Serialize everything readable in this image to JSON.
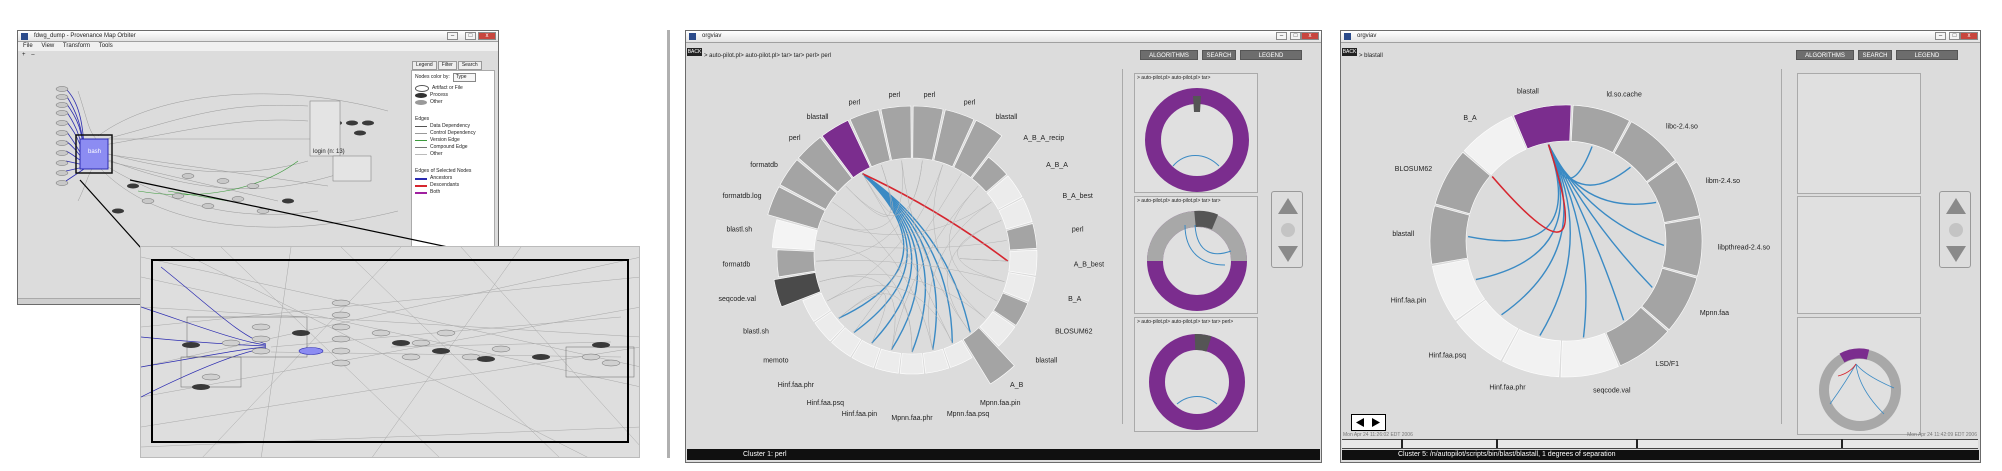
{
  "window1": {
    "title": "fdwg_dump - Provenance Map Orbiter",
    "menu": [
      "File",
      "View",
      "Transform",
      "Tools"
    ],
    "tabs": [
      "Legend",
      "Filter",
      "Search"
    ],
    "legend": {
      "nodes_color_by_label": "Nodes color by:",
      "nodes_color_by_value": "Type",
      "node_types": [
        "Artifact or File",
        "Process",
        "Other"
      ],
      "edges_title": "Edges",
      "edge_types": [
        "Data Dependency",
        "Control Dependency",
        "Version Edge",
        "Compound Edge",
        "Other"
      ],
      "selected_title": "Edges of Selected Nodes",
      "selected_types": [
        "Ancestors",
        "Descendants",
        "Both"
      ]
    },
    "center_node_label": "bash",
    "group_node_label": "login (n: 13)"
  },
  "window2": {
    "title": "orgviav",
    "back_label": "BACK",
    "breadcrumb": "> auto-pilot.pl> auto-pilot.pl> tar> tar> perl> perl",
    "buttons": [
      "ALGORITHMS",
      "SEARCH",
      "LEGEND"
    ],
    "ring_labels": [
      "formatdb.log",
      "formatdb",
      "perl",
      "blastall",
      "perl",
      "perl",
      "perl",
      "perl",
      "blastall",
      "A_B_A_recip",
      "A_B_A",
      "B_A_best",
      "perl",
      "A_B_best",
      "B_A",
      "BLOSUM62",
      "blastall",
      "A_B",
      "Mpnn.faa.pin",
      "Mpnn.faa.psq",
      "Mpnn.faa.phr",
      "Hinf.faa.pin",
      "Hinf.faa.psq",
      "Hinf.faa.phr",
      "memoto",
      "blastl.sh",
      "seqcode.val",
      "formatdb",
      "blastl.sh"
    ],
    "thumbs": [
      {
        "caption": "> auto-pilot.pl> auto-pilot.pl> tar>"
      },
      {
        "caption": "> auto-pilot.pl> auto-pilot.pl> tar> tar>"
      },
      {
        "caption": "> auto-pilot.pl> auto-pilot.pl> tar> tar> perl>"
      }
    ],
    "status": "Cluster 1: perl"
  },
  "window3": {
    "title": "orgviav",
    "back_label": "BACK",
    "breadcrumb": "> blastall",
    "buttons": [
      "ALGORITHMS",
      "SEARCH",
      "LEGEND"
    ],
    "ring_labels": [
      "blastall",
      "ld.so.cache",
      "libc-2.4.so",
      "libm-2.4.so",
      "libpthread-2.4.so",
      "Mpnn.faa",
      "LSD/F1",
      "seqcode.val",
      "Hinf.faa.phr",
      "Hinf.faa.psq",
      "Hinf.faa.pin",
      "blastall",
      "BLOSUM62",
      "B_A"
    ],
    "timeline_start": "Mon Apr 24 11:26:02 EDT 2006",
    "timeline_end": "Mon Apr 24 11:42:09 EDT 2006",
    "status": "Cluster 5: /n/autopilot/scripts/bin/blast/blastall, 1 degrees of separation"
  },
  "colors": {
    "purple": "#7b2d8e",
    "blue_edge": "#3a8ac4",
    "red_edge": "#d6262f",
    "ring_gray": "#a0a0a0"
  }
}
